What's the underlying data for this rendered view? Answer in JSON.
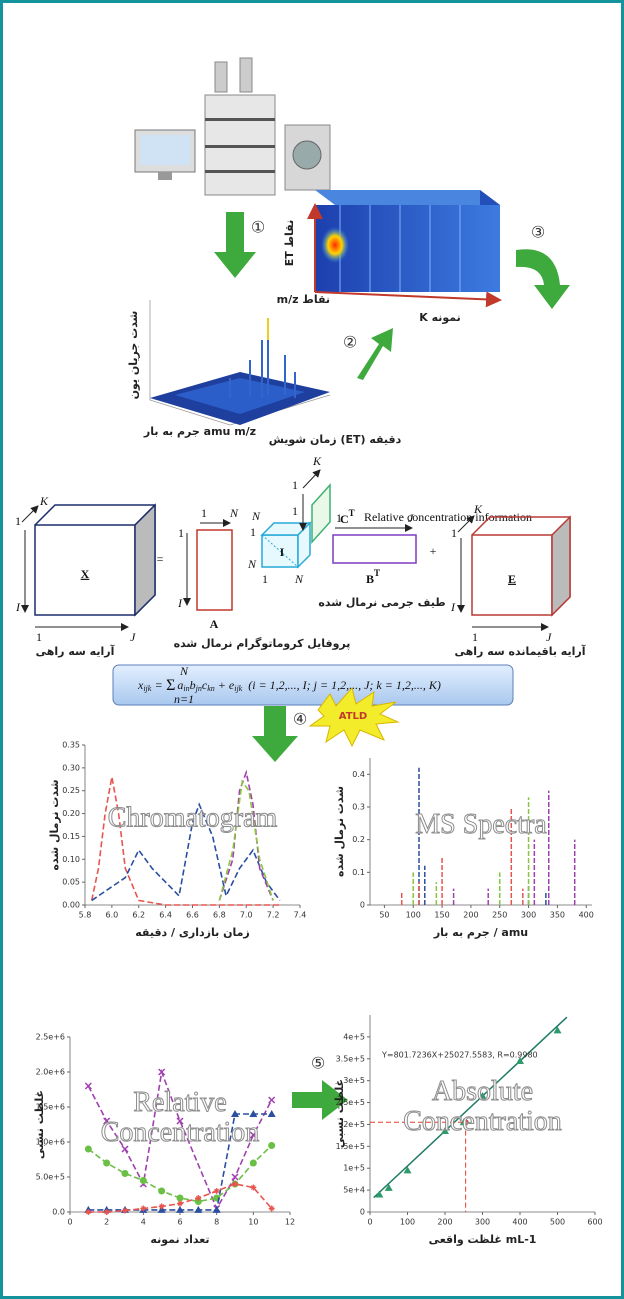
{
  "steps": [
    "①",
    "②",
    "③",
    "④",
    "⑤"
  ],
  "data_cube": {
    "et_axis": "ET نقاط",
    "mz_axis": "m/z نقاط",
    "k_axis": "K نمونه"
  },
  "surface": {
    "y_label": "شدت جریان یون",
    "x_label": "جرم به بار amu m/z",
    "z_label": "زمان شویش (ET) دقیقه"
  },
  "decomposition": {
    "x_symbol": "X",
    "x_axes": [
      "K",
      "1",
      "I",
      "1",
      "J"
    ],
    "x_caption": "آرایه سه راهی",
    "equals": "=",
    "a_symbol": "A",
    "a_axes": [
      "1",
      "N",
      "1",
      "I"
    ],
    "a_caption": "پروفایل کروماتوگرام نرمال شده",
    "i_symbol": "I",
    "i_axes": [
      "N",
      "1",
      "N",
      "1",
      "N"
    ],
    "c_symbol": "C",
    "c_sup": "T",
    "c_axes": [
      "K",
      "1",
      "1"
    ],
    "c_caption": "Relative concentration information",
    "b_symbol": "B",
    "b_sup": "T",
    "b_axes": [
      "1",
      "J"
    ],
    "b_caption": "طیف جرمی نرمال شده",
    "plus": "+",
    "e_symbol": "E",
    "e_axes": [
      "K",
      "1",
      "I",
      "1",
      "J"
    ],
    "e_caption": "آرایه باقیمانده سه راهی"
  },
  "formula": {
    "lhs": "x",
    "lhs_sub": "ijk",
    "eq": "=",
    "sum": "Σ",
    "sum_top": "N",
    "sum_bottom": "n=1",
    "body": "a",
    "body_subs": [
      "in",
      "jn",
      "kn"
    ],
    "body_letters": [
      "b",
      "c"
    ],
    "tail": "+ e",
    "tail_sub": "ijk",
    "range": "(i = 1,2,..., I; j = 1,2,..., J; k = 1,2,..., K)"
  },
  "atld": "ATLD",
  "chart_data": [
    {
      "type": "line",
      "title": "Chromatogram",
      "x_label": "زمان بازداری / دقیقه",
      "y_label": "شدت نرمال شده",
      "xlim": [
        5.8,
        7.4
      ],
      "ylim": [
        0,
        0.35
      ],
      "xticks": [
        5.8,
        {
          "value": 6,
          "label": "6.0"
        },
        6.2,
        6.4,
        6.6,
        6.8,
        {
          "value": 7,
          "label": "7.0"
        },
        7.2,
        7.4
      ],
      "yticks": [
        {
          "value": 0,
          "label": "0.00"
        },
        0.05,
        {
          "value": 0.1,
          "label": "0.10"
        },
        0.15,
        {
          "value": 0.2,
          "label": "0.20"
        },
        0.25,
        {
          "value": 0.3,
          "label": "0.30"
        },
        0.35
      ],
      "series": [
        {
          "color": "#e8554e",
          "x": [
            5.85,
            5.9,
            5.95,
            6.0,
            6.05,
            6.1,
            6.2,
            6.4,
            7.25
          ],
          "values": [
            0.01,
            0.08,
            0.2,
            0.28,
            0.2,
            0.08,
            0.01,
            0.0,
            0.0
          ]
        },
        {
          "color": "#2a4fa0",
          "x": [
            5.85,
            6.1,
            6.2,
            6.3,
            6.5,
            6.6,
            6.65,
            6.75,
            6.85,
            6.95,
            7.05,
            7.15,
            7.25
          ],
          "values": [
            0.01,
            0.06,
            0.12,
            0.08,
            0.02,
            0.18,
            0.22,
            0.15,
            0.02,
            0.08,
            0.12,
            0.05,
            0.01
          ]
        },
        {
          "color": "#a040b0",
          "x": [
            6.8,
            6.9,
            6.95,
            7.0,
            7.05,
            7.1,
            7.2
          ],
          "values": [
            0.01,
            0.1,
            0.25,
            0.29,
            0.22,
            0.08,
            0.01
          ]
        },
        {
          "color": "#8cc63f",
          "x": [
            6.8,
            6.9,
            6.97,
            7.02,
            7.1,
            7.2
          ],
          "values": [
            0.01,
            0.12,
            0.27,
            0.25,
            0.1,
            0.01
          ]
        }
      ]
    },
    {
      "type": "stem",
      "title": "MS Spectra",
      "x_label": "جرم به بار / amu",
      "y_label": "شدت نرمال شده",
      "xlim": [
        25,
        410
      ],
      "ylim": [
        0,
        0.45
      ],
      "xticks": [
        50,
        100,
        150,
        200,
        250,
        300,
        350,
        400
      ],
      "yticks": [
        0,
        0.1,
        0.2,
        0.3,
        0.4
      ],
      "series": [
        {
          "color": "#2a4fa0",
          "x": [
            110,
            120,
            300,
            330
          ],
          "values": [
            0.42,
            0.12,
            0.06,
            0.04
          ]
        },
        {
          "color": "#e8554e",
          "x": [
            80,
            110,
            150,
            270,
            290
          ],
          "values": [
            0.04,
            0.07,
            0.15,
            0.3,
            0.05
          ]
        },
        {
          "color": "#8cc63f",
          "x": [
            100,
            140,
            250,
            300
          ],
          "values": [
            0.1,
            0.07,
            0.1,
            0.33
          ]
        },
        {
          "color": "#a040b0",
          "x": [
            170,
            230,
            310,
            335,
            380
          ],
          "values": [
            0.05,
            0.05,
            0.2,
            0.35,
            0.2
          ]
        }
      ]
    },
    {
      "type": "line",
      "title_lines": [
        "Relative",
        "Concentration"
      ],
      "x_label": "تعداد نمونه",
      "y_label": "غلظت نسبی",
      "xlim": [
        0,
        12
      ],
      "ylim": [
        0,
        2500000
      ],
      "xticks": [
        0,
        2,
        4,
        6,
        8,
        10,
        12
      ],
      "yticks": [
        {
          "value": 0,
          "label": "0.0"
        },
        {
          "value": 500000,
          "label": "5.0e+5"
        },
        {
          "value": 1000000,
          "label": "1.0e+6"
        },
        {
          "value": 1500000,
          "label": "1.5e+6"
        },
        {
          "value": 2000000,
          "label": "2.0e+6"
        },
        {
          "value": 2500000,
          "label": "2.5e+6"
        }
      ],
      "series": [
        {
          "color": "#a040b0",
          "marker": "cross",
          "x": [
            1,
            2,
            3,
            4,
            5,
            6,
            8,
            9,
            10,
            11
          ],
          "values": [
            1800000,
            1300000,
            900000,
            400000,
            2000000,
            1300000,
            50000,
            500000,
            1100000,
            1600000
          ]
        },
        {
          "color": "#6abf45",
          "marker": "circle",
          "x": [
            1,
            2,
            3,
            4,
            5,
            6,
            7,
            8,
            9,
            10,
            11
          ],
          "values": [
            900000,
            700000,
            550000,
            450000,
            300000,
            200000,
            150000,
            200000,
            400000,
            700000,
            950000
          ]
        },
        {
          "color": "#2a4fa0",
          "marker": "triangle",
          "x": [
            1,
            2,
            3,
            4,
            5,
            6,
            7,
            8,
            9,
            10,
            11
          ],
          "values": [
            30000,
            30000,
            30000,
            30000,
            30000,
            30000,
            30000,
            30000,
            1400000,
            1400000,
            1400000
          ]
        },
        {
          "color": "#e8554e",
          "marker": "star",
          "x": [
            1,
            2,
            3,
            4,
            5,
            6,
            7,
            8,
            9,
            10,
            11
          ],
          "values": [
            0,
            0,
            20000,
            50000,
            80000,
            120000,
            200000,
            300000,
            400000,
            350000,
            50000
          ]
        }
      ]
    },
    {
      "type": "scatter",
      "title_lines": [
        "Absolute",
        "Concentration"
      ],
      "x_label": "غلظت واقعی mL-1",
      "y_label": "غلظت نسبی",
      "equation": "Y=801.7236X+25027.5583, R=0.9980",
      "xlim": [
        0,
        600
      ],
      "ylim": [
        0,
        450000
      ],
      "xticks": [
        0,
        100,
        200,
        300,
        400,
        500,
        600
      ],
      "yticks": [
        0,
        {
          "value": 50000,
          "label": "5e+4"
        },
        {
          "value": 100000,
          "label": "1e+5"
        },
        {
          "value": 150000,
          "label": "1.5e+5"
        },
        {
          "value": 200000,
          "label": "2e+5"
        },
        {
          "value": 250000,
          "label": "2.5e+5"
        },
        {
          "value": 300000,
          "label": "3e+5"
        },
        {
          "value": 350000,
          "label": "3.5e+5"
        },
        {
          "value": 400000,
          "label": "4e+5"
        }
      ],
      "series": [
        {
          "color": "#2e9a6b",
          "marker": "triangle",
          "x": [
            25,
            50,
            100,
            200,
            250,
            300,
            400,
            500
          ],
          "values": [
            40000,
            55000,
            95000,
            185000,
            205000,
            265000,
            345000,
            415000
          ]
        }
      ],
      "fit": {
        "color": "#1f7a66",
        "x": [
          10,
          525
        ],
        "values": [
          33000,
          445000
        ]
      },
      "highlight": {
        "color": "#e03a2f",
        "x": 255,
        "values": 205000
      }
    }
  ]
}
